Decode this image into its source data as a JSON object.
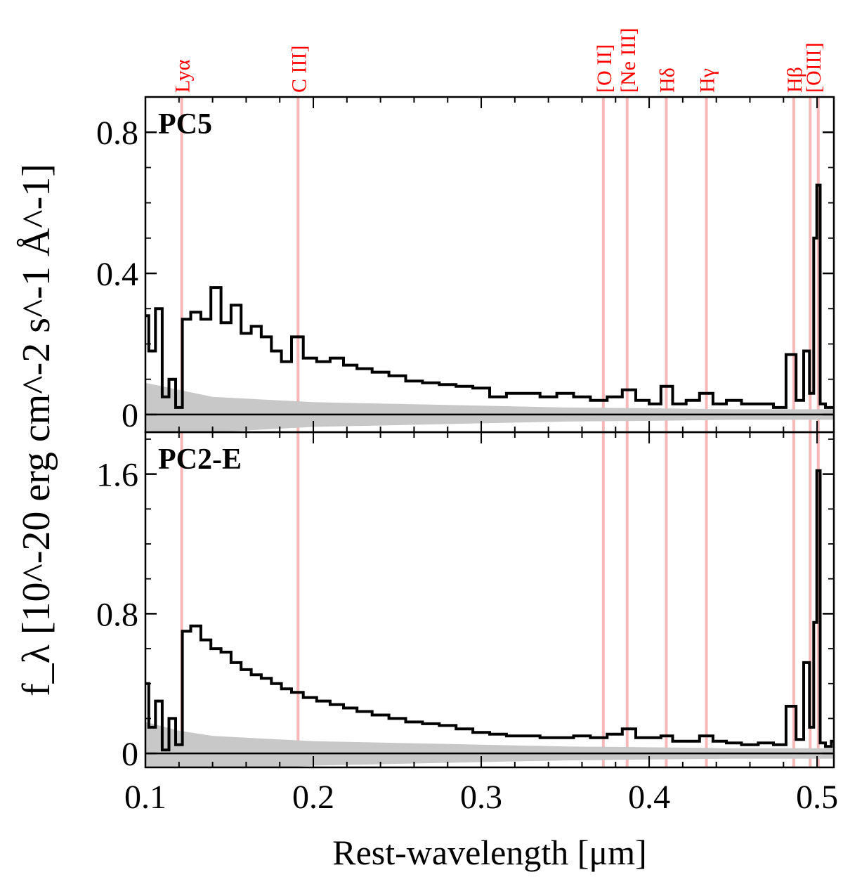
{
  "chart_data": {
    "type": "line",
    "ylabel": "f_λ [10^-20 erg cm^-2 s^-1 Å^-1]",
    "xlabel": "Rest-wavelength [μm]",
    "x_ticks": [
      "0.1",
      "0.2",
      "0.3",
      "0.4",
      "0.5"
    ],
    "xlim": [
      0.1,
      0.51
    ],
    "emission_lines": [
      {
        "name": "Lyα",
        "wavelength": 0.1216
      },
      {
        "name": "C III]",
        "wavelength": 0.1909
      },
      {
        "name": "[O II]",
        "wavelength": 0.3727
      },
      {
        "name": "[Ne III]",
        "wavelength": 0.3869
      },
      {
        "name": "Hδ",
        "wavelength": 0.4102
      },
      {
        "name": "Hγ",
        "wavelength": 0.4341
      },
      {
        "name": "Hβ",
        "wavelength": 0.4861
      },
      {
        "name": "[OIII]",
        "wavelength": 0.4959
      },
      {
        "name": "[OIII]",
        "wavelength": 0.5007
      }
    ],
    "panels": [
      {
        "label": "PC5",
        "ylim": [
          -0.05,
          0.9
        ],
        "y_ticks": [
          "0",
          "0.4",
          "0.8"
        ],
        "y_tick_values": [
          0,
          0.4,
          0.8
        ],
        "flux": [
          [
            0.1,
            0.28
          ],
          [
            0.104,
            0.18
          ],
          [
            0.108,
            0.3
          ],
          [
            0.112,
            0.05
          ],
          [
            0.116,
            0.1
          ],
          [
            0.12,
            0.02
          ],
          [
            0.124,
            0.27
          ],
          [
            0.13,
            0.29
          ],
          [
            0.136,
            0.27
          ],
          [
            0.142,
            0.36
          ],
          [
            0.148,
            0.26
          ],
          [
            0.154,
            0.31
          ],
          [
            0.16,
            0.23
          ],
          [
            0.166,
            0.25
          ],
          [
            0.172,
            0.22
          ],
          [
            0.178,
            0.18
          ],
          [
            0.184,
            0.15
          ],
          [
            0.19,
            0.22
          ],
          [
            0.198,
            0.16
          ],
          [
            0.206,
            0.15
          ],
          [
            0.214,
            0.16
          ],
          [
            0.222,
            0.14
          ],
          [
            0.23,
            0.13
          ],
          [
            0.24,
            0.12
          ],
          [
            0.25,
            0.11
          ],
          [
            0.26,
            0.095
          ],
          [
            0.27,
            0.09
          ],
          [
            0.28,
            0.085
          ],
          [
            0.29,
            0.08
          ],
          [
            0.3,
            0.075
          ],
          [
            0.31,
            0.05
          ],
          [
            0.32,
            0.06
          ],
          [
            0.33,
            0.06
          ],
          [
            0.34,
            0.05
          ],
          [
            0.35,
            0.06
          ],
          [
            0.36,
            0.05
          ],
          [
            0.37,
            0.04
          ],
          [
            0.38,
            0.05
          ],
          [
            0.388,
            0.07
          ],
          [
            0.396,
            0.04
          ],
          [
            0.404,
            0.03
          ],
          [
            0.41,
            0.08
          ],
          [
            0.418,
            0.03
          ],
          [
            0.426,
            0.04
          ],
          [
            0.434,
            0.06
          ],
          [
            0.442,
            0.03
          ],
          [
            0.45,
            0.04
          ],
          [
            0.46,
            0.03
          ],
          [
            0.47,
            0.03
          ],
          [
            0.478,
            0.02
          ],
          [
            0.485,
            0.17
          ],
          [
            0.49,
            0.04
          ],
          [
            0.494,
            0.18
          ],
          [
            0.497,
            0.06
          ],
          [
            0.499,
            0.5
          ],
          [
            0.5007,
            0.65
          ],
          [
            0.503,
            0.03
          ],
          [
            0.507,
            0.02
          ],
          [
            0.51,
            0.02
          ]
        ],
        "noise": [
          [
            0.1,
            0.09
          ],
          [
            0.12,
            0.07
          ],
          [
            0.14,
            0.05
          ],
          [
            0.16,
            0.045
          ],
          [
            0.18,
            0.04
          ],
          [
            0.2,
            0.035
          ],
          [
            0.25,
            0.03
          ],
          [
            0.3,
            0.025
          ],
          [
            0.35,
            0.02
          ],
          [
            0.4,
            0.018
          ],
          [
            0.45,
            0.015
          ],
          [
            0.51,
            0.015
          ]
        ]
      },
      {
        "label": "PC2-E",
        "ylim": [
          -0.08,
          1.84
        ],
        "y_ticks": [
          "0",
          "0.8",
          "1.6"
        ],
        "y_tick_values": [
          0,
          0.8,
          1.6
        ],
        "flux": [
          [
            0.1,
            0.4
          ],
          [
            0.104,
            0.15
          ],
          [
            0.108,
            0.3
          ],
          [
            0.112,
            0.02
          ],
          [
            0.116,
            0.2
          ],
          [
            0.12,
            0.05
          ],
          [
            0.124,
            0.7
          ],
          [
            0.13,
            0.73
          ],
          [
            0.136,
            0.65
          ],
          [
            0.142,
            0.6
          ],
          [
            0.148,
            0.58
          ],
          [
            0.154,
            0.52
          ],
          [
            0.16,
            0.48
          ],
          [
            0.166,
            0.45
          ],
          [
            0.172,
            0.43
          ],
          [
            0.178,
            0.4
          ],
          [
            0.184,
            0.37
          ],
          [
            0.19,
            0.35
          ],
          [
            0.198,
            0.32
          ],
          [
            0.206,
            0.3
          ],
          [
            0.214,
            0.28
          ],
          [
            0.222,
            0.26
          ],
          [
            0.23,
            0.24
          ],
          [
            0.24,
            0.22
          ],
          [
            0.25,
            0.2
          ],
          [
            0.26,
            0.18
          ],
          [
            0.27,
            0.17
          ],
          [
            0.28,
            0.16
          ],
          [
            0.29,
            0.14
          ],
          [
            0.3,
            0.12
          ],
          [
            0.31,
            0.11
          ],
          [
            0.32,
            0.1
          ],
          [
            0.33,
            0.1
          ],
          [
            0.34,
            0.09
          ],
          [
            0.35,
            0.09
          ],
          [
            0.36,
            0.1
          ],
          [
            0.37,
            0.09
          ],
          [
            0.38,
            0.11
          ],
          [
            0.388,
            0.14
          ],
          [
            0.396,
            0.09
          ],
          [
            0.404,
            0.09
          ],
          [
            0.41,
            0.1
          ],
          [
            0.418,
            0.07
          ],
          [
            0.426,
            0.07
          ],
          [
            0.434,
            0.1
          ],
          [
            0.442,
            0.07
          ],
          [
            0.45,
            0.06
          ],
          [
            0.46,
            0.05
          ],
          [
            0.47,
            0.06
          ],
          [
            0.478,
            0.05
          ],
          [
            0.485,
            0.27
          ],
          [
            0.49,
            0.08
          ],
          [
            0.494,
            0.52
          ],
          [
            0.497,
            0.15
          ],
          [
            0.499,
            0.75
          ],
          [
            0.5007,
            1.62
          ],
          [
            0.503,
            0.06
          ],
          [
            0.507,
            0.04
          ],
          [
            0.51,
            0.07
          ]
        ],
        "noise": [
          [
            0.1,
            0.18
          ],
          [
            0.12,
            0.13
          ],
          [
            0.14,
            0.1
          ],
          [
            0.16,
            0.09
          ],
          [
            0.18,
            0.08
          ],
          [
            0.2,
            0.07
          ],
          [
            0.25,
            0.06
          ],
          [
            0.3,
            0.05
          ],
          [
            0.35,
            0.04
          ],
          [
            0.4,
            0.035
          ],
          [
            0.45,
            0.03
          ],
          [
            0.51,
            0.03
          ]
        ]
      }
    ]
  }
}
